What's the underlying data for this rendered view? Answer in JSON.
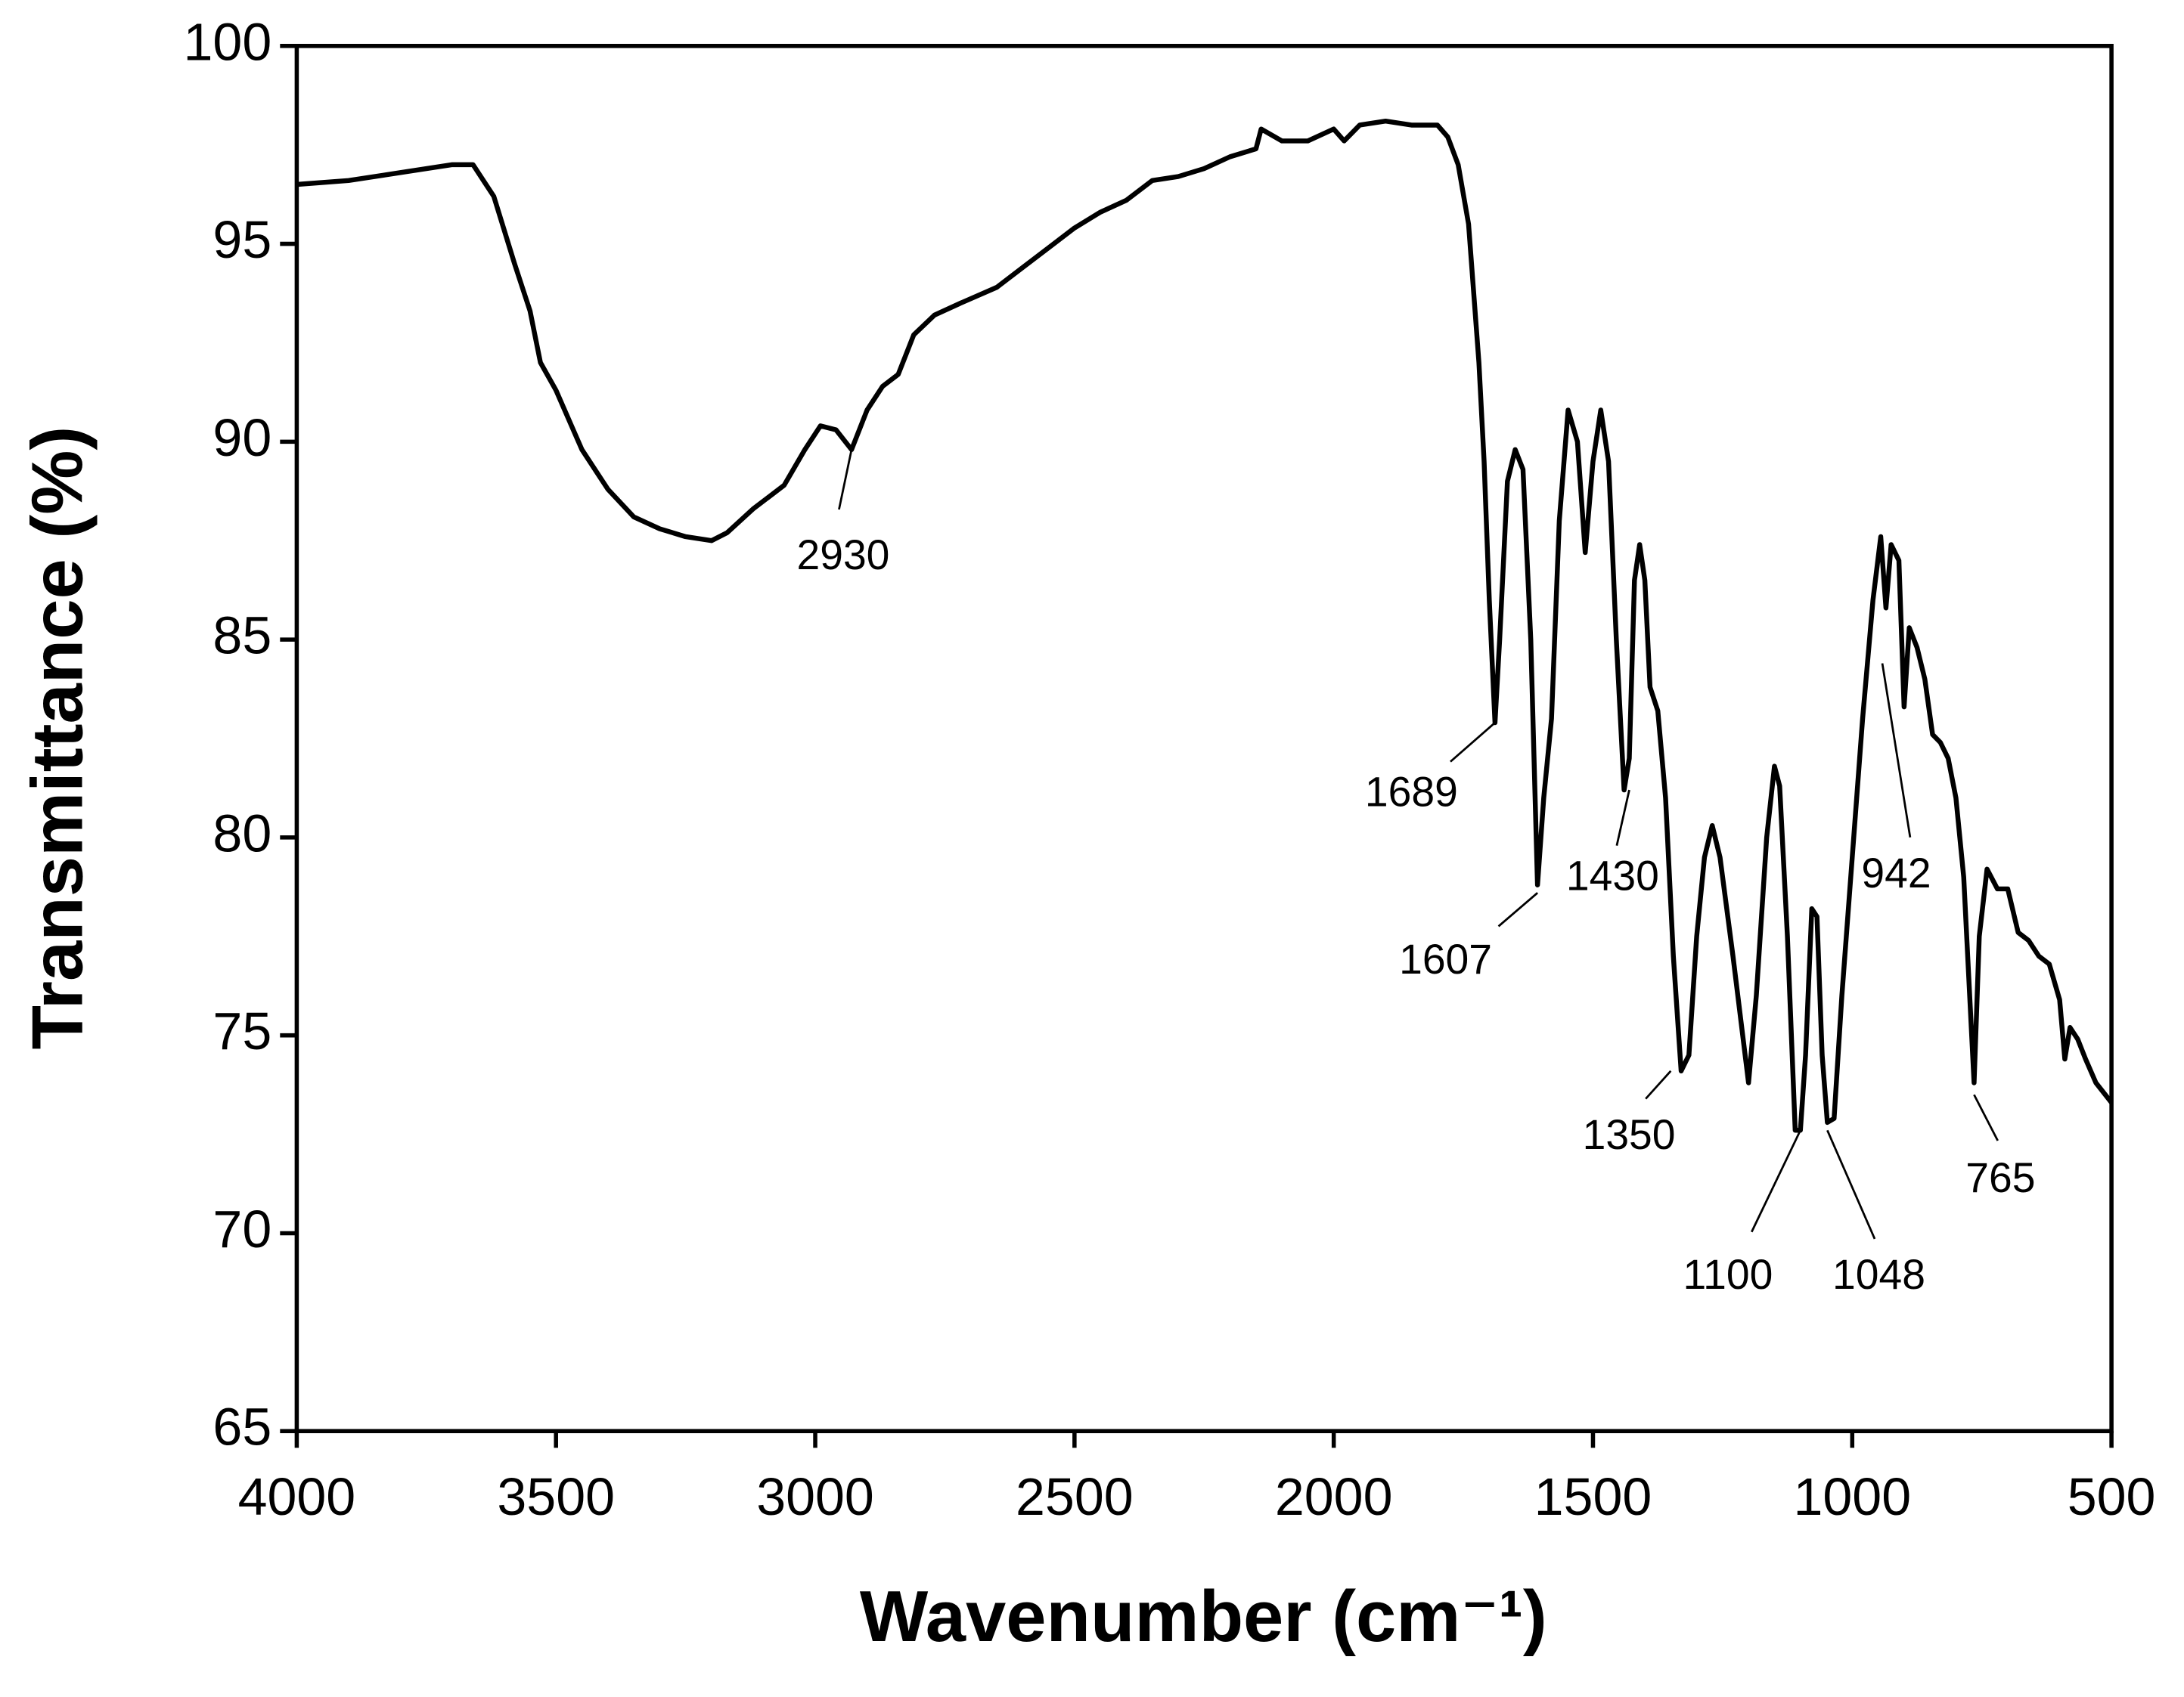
{
  "chart_data": {
    "type": "line",
    "x_label": "Wavenumber (cm⁻¹)",
    "y_label": "Transmittance (%)",
    "xlim": [
      4000,
      500
    ],
    "ylim": [
      65,
      100
    ],
    "xticks": [
      4000,
      3500,
      3000,
      2500,
      2000,
      1500,
      1000,
      500
    ],
    "yticks": [
      65,
      70,
      75,
      80,
      85,
      90,
      95,
      100
    ],
    "x": [
      4000,
      3900,
      3800,
      3700,
      3660,
      3620,
      3580,
      3550,
      3530,
      3500,
      3450,
      3400,
      3350,
      3300,
      3250,
      3200,
      3170,
      3120,
      3060,
      3020,
      2990,
      2960,
      2930,
      2900,
      2870,
      2840,
      2810,
      2770,
      2720,
      2650,
      2600,
      2550,
      2500,
      2450,
      2400,
      2350,
      2300,
      2250,
      2200,
      2150,
      2140,
      2100,
      2050,
      2000,
      1980,
      1950,
      1900,
      1850,
      1800,
      1780,
      1760,
      1740,
      1720,
      1710,
      1700,
      1689,
      1680,
      1665,
      1650,
      1635,
      1620,
      1607,
      1595,
      1580,
      1565,
      1548,
      1530,
      1515,
      1500,
      1485,
      1470,
      1455,
      1440,
      1430,
      1420,
      1410,
      1400,
      1390,
      1375,
      1360,
      1345,
      1330,
      1315,
      1300,
      1285,
      1270,
      1255,
      1230,
      1200,
      1185,
      1165,
      1150,
      1140,
      1125,
      1110,
      1100,
      1090,
      1078,
      1068,
      1058,
      1048,
      1035,
      1020,
      1000,
      980,
      960,
      945,
      935,
      925,
      910,
      900,
      890,
      875,
      860,
      845,
      830,
      815,
      800,
      785,
      765,
      755,
      740,
      720,
      700,
      680,
      660,
      640,
      620,
      600,
      590,
      580,
      565,
      550,
      530,
      500
    ],
    "series": [
      {
        "color": "#000000",
        "values": [
          96.5,
          96.6,
          96.8,
          97.0,
          97.0,
          96.2,
          94.5,
          93.3,
          92.0,
          91.3,
          89.8,
          88.8,
          88.1,
          87.8,
          87.6,
          87.5,
          87.7,
          88.3,
          88.9,
          89.8,
          90.4,
          90.3,
          89.8,
          90.8,
          91.4,
          91.7,
          92.7,
          93.2,
          93.5,
          93.9,
          94.4,
          94.9,
          95.4,
          95.8,
          96.1,
          96.6,
          96.7,
          96.9,
          97.2,
          97.4,
          97.9,
          97.6,
          97.6,
          97.9,
          97.6,
          98.0,
          98.1,
          98.0,
          98.0,
          97.7,
          97.0,
          95.5,
          92.0,
          89.5,
          86.0,
          82.9,
          85.0,
          89.0,
          89.8,
          89.3,
          85.0,
          78.8,
          81.0,
          83.0,
          88.0,
          90.8,
          90.0,
          87.2,
          89.5,
          90.8,
          89.5,
          85.0,
          81.2,
          82.0,
          86.5,
          87.4,
          86.5,
          83.8,
          83.2,
          81.0,
          77.0,
          74.1,
          74.5,
          77.5,
          79.5,
          80.3,
          79.5,
          77.0,
          73.8,
          76.0,
          80.0,
          81.8,
          81.3,
          77.5,
          72.6,
          72.6,
          74.5,
          78.2,
          78.0,
          74.5,
          72.8,
          72.9,
          76.0,
          79.5,
          83.0,
          86.0,
          87.6,
          85.8,
          87.4,
          87.0,
          83.3,
          85.3,
          84.8,
          84.0,
          82.6,
          82.4,
          82.0,
          81.0,
          79.0,
          73.8,
          77.5,
          79.2,
          78.7,
          78.7,
          77.6,
          77.4,
          77.0,
          76.8,
          75.9,
          74.4,
          75.2,
          74.9,
          74.4,
          73.8,
          73.3
        ]
      }
    ],
    "annotations": [
      {
        "label": "2930",
        "x": 2930,
        "y": 89.8
      },
      {
        "label": "1689",
        "x": 1689,
        "y": 82.9
      },
      {
        "label": "1607",
        "x": 1607,
        "y": 78.6
      },
      {
        "label": "1430",
        "x": 1430,
        "y": 81.2
      },
      {
        "label": "1350",
        "x": 1350,
        "y": 74.1
      },
      {
        "label": "1100",
        "x": 1100,
        "y": 72.6
      },
      {
        "label": "1048",
        "x": 1048,
        "y": 72.6
      },
      {
        "label": "942",
        "x": 942,
        "y": 84.4
      },
      {
        "label": "765",
        "x": 765,
        "y": 73.5
      }
    ]
  }
}
